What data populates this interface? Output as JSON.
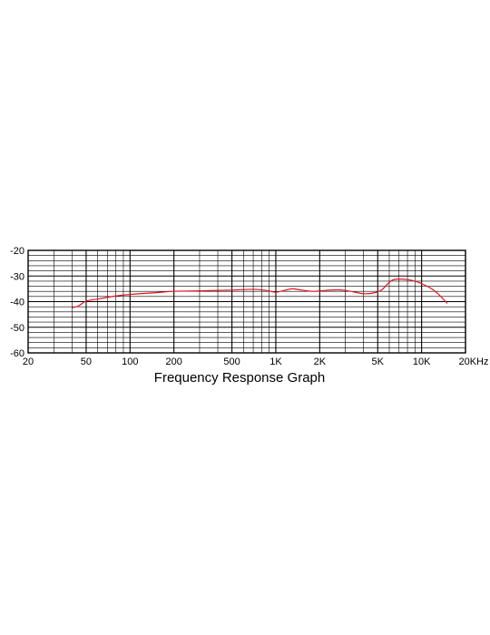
{
  "chart_data": {
    "type": "line",
    "title": "Frequency Response Graph",
    "xlabel": "",
    "ylabel": "",
    "x_scale": "log",
    "xlim": [
      20,
      20000
    ],
    "ylim": [
      -60,
      -20
    ],
    "grid": true,
    "legend": "none",
    "line_color": "#e0141e",
    "x_ticks": [
      {
        "value": 20,
        "label": "20"
      },
      {
        "value": 50,
        "label": "50"
      },
      {
        "value": 100,
        "label": "100"
      },
      {
        "value": 200,
        "label": "200"
      },
      {
        "value": 500,
        "label": "500"
      },
      {
        "value": 1000,
        "label": "1K"
      },
      {
        "value": 2000,
        "label": "2K"
      },
      {
        "value": 5000,
        "label": "5K"
      },
      {
        "value": 10000,
        "label": "10K"
      },
      {
        "value": 20000,
        "label": "20KHz"
      }
    ],
    "y_ticks": [
      {
        "value": -20,
        "label": "-20"
      },
      {
        "value": -30,
        "label": "-30"
      },
      {
        "value": -40,
        "label": "-40"
      },
      {
        "value": -50,
        "label": "-50"
      },
      {
        "value": -60,
        "label": "-60"
      }
    ],
    "series": [
      {
        "x": [
          40,
          44,
          50,
          60,
          80,
          100,
          150,
          200,
          300,
          500,
          700,
          850,
          1000,
          1150,
          1300,
          1500,
          1800,
          2200,
          2700,
          3200,
          4000,
          4700,
          5300,
          5800,
          6300,
          7000,
          8000,
          9000,
          10000,
          11500,
          13000,
          15000
        ],
        "y": [
          -42.3,
          -41.8,
          -39.8,
          -39.0,
          -37.8,
          -37.2,
          -36.5,
          -36.0,
          -35.8,
          -35.5,
          -35.2,
          -35.6,
          -36.3,
          -35.6,
          -35.0,
          -35.5,
          -36.0,
          -35.6,
          -35.4,
          -35.9,
          -36.9,
          -36.6,
          -35.5,
          -33.3,
          -31.6,
          -31.2,
          -31.4,
          -32.0,
          -33.0,
          -34.7,
          -37.0,
          -40.7
        ]
      }
    ]
  }
}
